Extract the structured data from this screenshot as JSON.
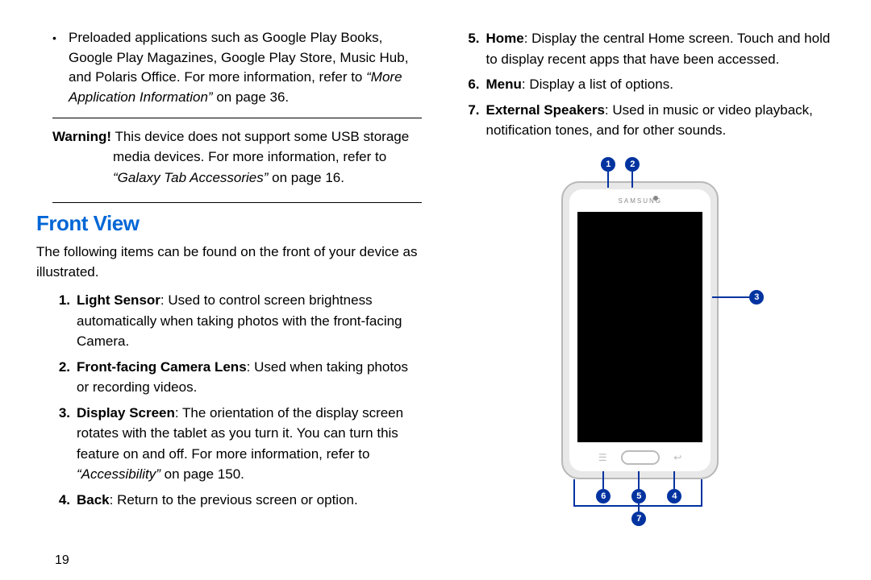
{
  "colors": {
    "accent_blue": "#0066d6",
    "callout_blue": "#0033a0",
    "text": "#000000",
    "bg": "#ffffff"
  },
  "left": {
    "bullet": {
      "pre": "Preloaded applications such as Google Play Books, Google Play Magazines, Google Play Store, Music Hub, and Polaris Office. For more information, refer to ",
      "ref": "“More Application Information”",
      "post": " on page 36."
    },
    "warning": {
      "label": "Warning!",
      "line1": " This device does not support some USB storage",
      "line2": "media devices. For more information, refer to",
      "ref": "“Galaxy Tab Accessories”",
      "post": " on page 16."
    },
    "heading": "Front View",
    "intro": "The following items can be found on the front of your device as illustrated.",
    "items": [
      {
        "n": "1.",
        "b": "Light Sensor",
        "t": ": Used to control screen brightness automatically when taking photos with the front-facing Camera."
      },
      {
        "n": "2.",
        "b": "Front-facing Camera Lens",
        "t": ": Used when taking photos or recording videos."
      },
      {
        "n": "3.",
        "b": "Display Screen",
        "t": ": The orientation of the display screen rotates with the tablet as you turn it. You can turn this feature on and off. For more information, refer to ",
        "ref": "“Accessibility”",
        "post": " on page 150."
      },
      {
        "n": "4.",
        "b": "Back",
        "t": ": Return to the previous screen or option."
      }
    ],
    "page_num": "19"
  },
  "right": {
    "items": [
      {
        "n": "5.",
        "b": "Home",
        "t": ": Display the central Home screen. Touch and hold to display recent apps that have been accessed."
      },
      {
        "n": "6.",
        "b": "Menu",
        "t": ": Display a list of options."
      },
      {
        "n": "7.",
        "b": "External Speakers",
        "t": ": Used in music or video playback, notification tones, and for other sounds."
      }
    ],
    "device": {
      "brand": "SAMSUNG",
      "soft_left": "☰",
      "soft_right": "↩",
      "callouts": [
        "1",
        "2",
        "3",
        "4",
        "5",
        "6",
        "7"
      ]
    }
  }
}
